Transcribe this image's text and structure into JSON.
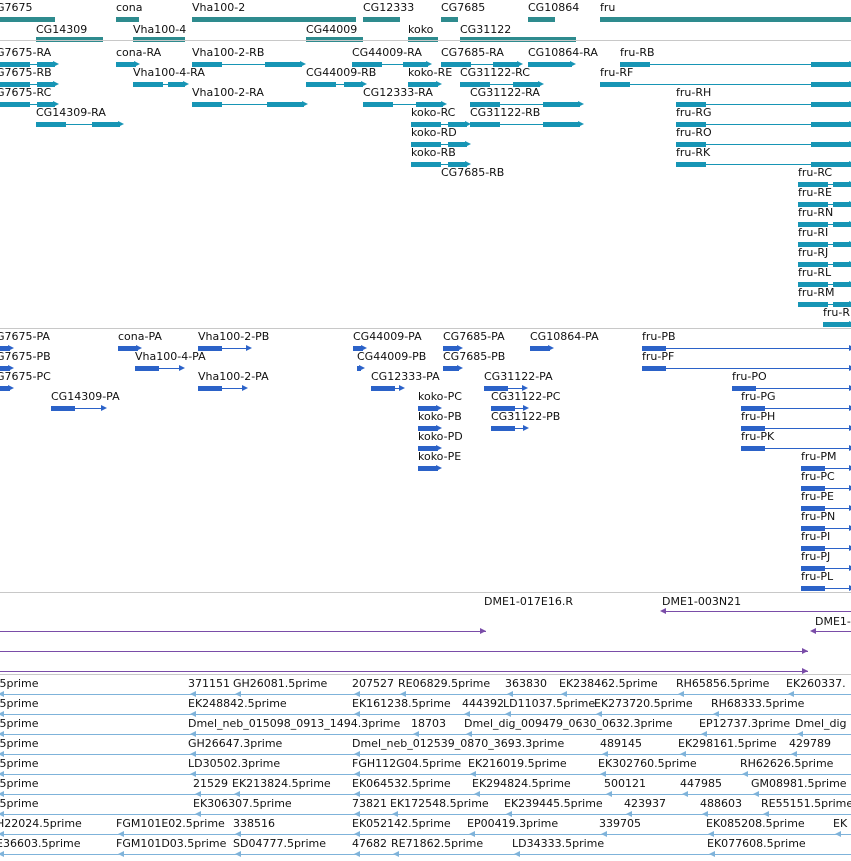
{
  "colors": {
    "gene": "#2e8b8e",
    "mrna": "#1795b5",
    "protein": "#2b62c8",
    "clone": "#7a4da8",
    "est": "#7fb3da",
    "separator": "#c8c8c8"
  },
  "tracks": {
    "genes": {
      "labels": [
        "G7675",
        "cona",
        "Vha100-2",
        "CG12333",
        "CG7685",
        "CG10864",
        "fru",
        "CG14309",
        "Vha100-4",
        "CG44009",
        "koko",
        "CG31122"
      ]
    },
    "transcripts": {
      "labels": [
        "G7675-RA",
        "cona-RA",
        "Vha100-2-RB",
        "CG44009-RA",
        "CG7685-RA",
        "CG10864-RA",
        "fru-RB",
        "G7675-RB",
        "Vha100-4-RA",
        "CG44009-RB",
        "koko-RE",
        "CG31122-RC",
        "fru-RF",
        "G7675-RC",
        "Vha100-2-RA",
        "CG12333-RA",
        "CG31122-RA",
        "fru-RH",
        "CG14309-RA",
        "koko-RC",
        "CG31122-RB",
        "fru-RG",
        "koko-RD",
        "fru-RO",
        "koko-RB",
        "fru-RK",
        "CG7685-RB",
        "fru-RC",
        "fru-RE",
        "fru-RN",
        "fru-RI",
        "fru-RJ",
        "fru-RL",
        "fru-RM",
        "fru-R"
      ]
    },
    "proteins": {
      "labels": [
        "G7675-PA",
        "cona-PA",
        "Vha100-2-PB",
        "CG44009-PA",
        "CG7685-PA",
        "CG10864-PA",
        "fru-PB",
        "G7675-PB",
        "Vha100-4-PA",
        "CG44009-PB",
        "CG7685-PB",
        "fru-PF",
        "G7675-PC",
        "Vha100-2-PA",
        "CG12333-PA",
        "CG31122-PA",
        "fru-PO",
        "CG14309-PA",
        "koko-PC",
        "CG31122-PC",
        "fru-PG",
        "koko-PB",
        "CG31122-PB",
        "fru-PH",
        "koko-PD",
        "fru-PK",
        "koko-PE",
        "fru-PM",
        "fru-PC",
        "fru-PE",
        "fru-PN",
        "fru-PI",
        "fru-PJ",
        "fru-PL"
      ]
    },
    "clones": {
      "labels": [
        "DME1-017E16.R",
        "DME1-003N21",
        "DME1-"
      ]
    },
    "ests": {
      "labels": [
        ".5prime",
        "371151",
        "GH26081.5prime",
        "207527",
        "RE06829.5prime",
        "363830",
        "EK238462.5prime",
        "RH65856.5prime",
        "EK260337.",
        ".5prime",
        "EK248842.5prime",
        "EK161238.5prime",
        "444392",
        "LD11037.5prime",
        "EK273720.5prime",
        "RH68333.5prime",
        ".5prime",
        "Dmel_neb_015098_0913_1494.3prime",
        "18703",
        "Dmel_dig_009479_0630_0632.3prime",
        "EP12737.3prime",
        "Dmel_dig",
        ".5prime",
        "GH26647.3prime",
        "Dmel_neb_012539_0870_3693.3prime",
        "489145",
        "EK298161.5prime",
        "429789",
        ".5prime",
        "LD30502.3prime",
        "FGH112G04.5prime",
        "EK216019.5prime",
        "EK302760.5prime",
        "RH62626.5prime",
        ".5prime",
        "21529",
        "EK213824.5prime",
        "EK064532.5prime",
        "EK294824.5prime",
        "500121",
        "447985",
        "GM08981.5prime",
        ".5prime",
        "EK306307.5prime",
        "73821",
        "EK172548.5prime",
        "EK239445.5prime",
        "423937",
        "488603",
        "RE55151.5prime",
        "H22024.5prime",
        "FGM101E02.5prime",
        "338516",
        "EK052142.5prime",
        "EP00419.3prime",
        "339705",
        "EK085208.5prime",
        "EK",
        "E36603.5prime",
        "FGM101D03.5prime",
        "SD04777.5prime",
        "47682",
        "RE71862.5prime",
        "LD34333.5prime",
        "EK077608.5prime"
      ]
    }
  }
}
